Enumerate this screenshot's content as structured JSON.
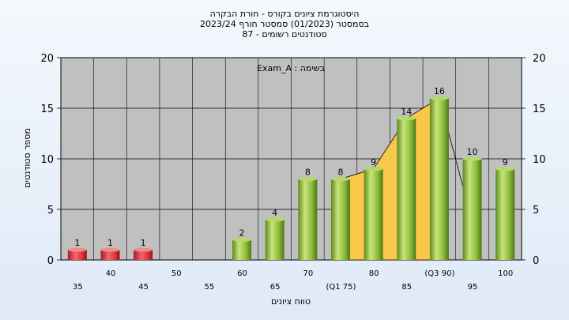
{
  "title_lines": [
    "היסטוגרמת ציונים בקורס - חורת הבקרה",
    "בסמסטר  (01/2023)  סמסטר חורף 2023/24",
    "סטודנטים רשומים - 87"
  ],
  "colors": {
    "bar_green": "#8fbf3f",
    "bar_red": "#e0353a",
    "plot_bg": "#c0c0c0",
    "area_fill": "#f7c84a",
    "grid": "#000000"
  },
  "chart_data": {
    "type": "bar",
    "annotation": "בשימה : Exam_A",
    "xlabel": "טווח ציונים",
    "ylabel": "מספר סטודנטים",
    "ylim": [
      0,
      20
    ],
    "yticks": [
      0,
      5,
      10,
      15,
      20
    ],
    "grid": true,
    "categories": [
      "35",
      "40",
      "45",
      "50",
      "55",
      "60",
      "65",
      "70",
      "(Q1 75)",
      "80",
      "85",
      "(Q3 90)",
      "95",
      "100"
    ],
    "values": [
      1,
      1,
      1,
      0,
      0,
      2,
      4,
      8,
      8,
      9,
      14,
      16,
      10,
      9
    ],
    "bar_colors": [
      "red",
      "red",
      "red",
      "green",
      "green",
      "green",
      "green",
      "green",
      "green",
      "green",
      "green",
      "green",
      "green",
      "green"
    ],
    "quartile_band": {
      "from": "(Q1 75)",
      "to": "(Q3 90)"
    }
  }
}
